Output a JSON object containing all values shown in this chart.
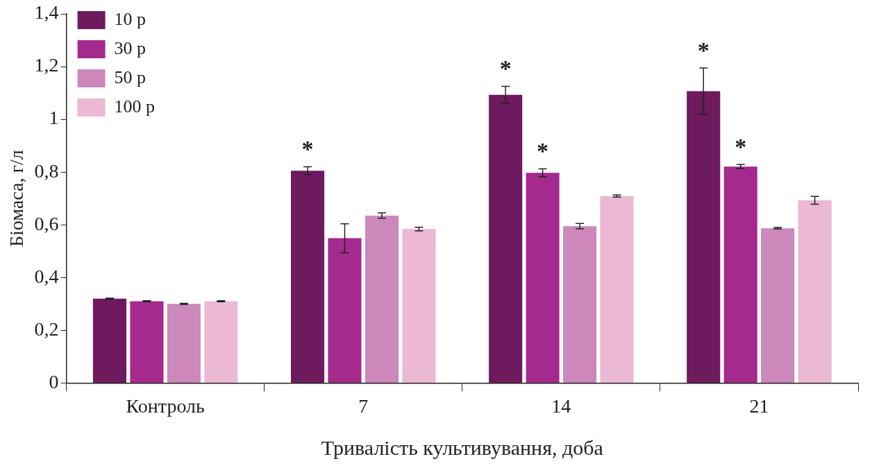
{
  "chart_data": {
    "type": "bar",
    "xlabel": "Тривалість культивування, доба",
    "ylabel": "Біомаса, г/л",
    "categories": [
      "Контроль",
      "7",
      "14",
      "21"
    ],
    "series": [
      {
        "name": "10 р",
        "color": "#6e1a5e",
        "values": [
          0.32,
          0.805,
          1.093,
          1.107
        ],
        "errors": [
          0.002,
          0.015,
          0.032,
          0.088
        ],
        "value_labels": [
          null,
          "*",
          "*",
          "*"
        ]
      },
      {
        "name": "30 р",
        "color": "#a52a8e",
        "values": [
          0.31,
          0.549,
          0.797,
          0.821
        ],
        "errors": [
          0.002,
          0.055,
          0.015,
          0.008
        ],
        "value_labels": [
          null,
          null,
          "*",
          "*"
        ]
      },
      {
        "name": "50 р",
        "color": "#cc88bb",
        "values": [
          0.3,
          0.635,
          0.595,
          0.587
        ],
        "errors": [
          0.002,
          0.01,
          0.01,
          0.003
        ]
      },
      {
        "name": "100 р",
        "color": "#ebb9d4",
        "values": [
          0.31,
          0.584,
          0.709,
          0.693
        ],
        "errors": [
          0.002,
          0.007,
          0.004,
          0.015
        ]
      }
    ],
    "ylim": [
      0,
      1.4
    ],
    "yticks": [
      0,
      {
        "value": 0.2,
        "label": "0,2"
      },
      {
        "value": 0.4,
        "label": "0,4"
      },
      {
        "value": 0.6,
        "label": "0,6"
      },
      {
        "value": 0.8,
        "label": "0,8"
      },
      1,
      {
        "value": 1.2,
        "label": "1,2"
      },
      {
        "value": 1.4,
        "label": "1,4"
      }
    ],
    "grid": false,
    "legend": "top left"
  }
}
